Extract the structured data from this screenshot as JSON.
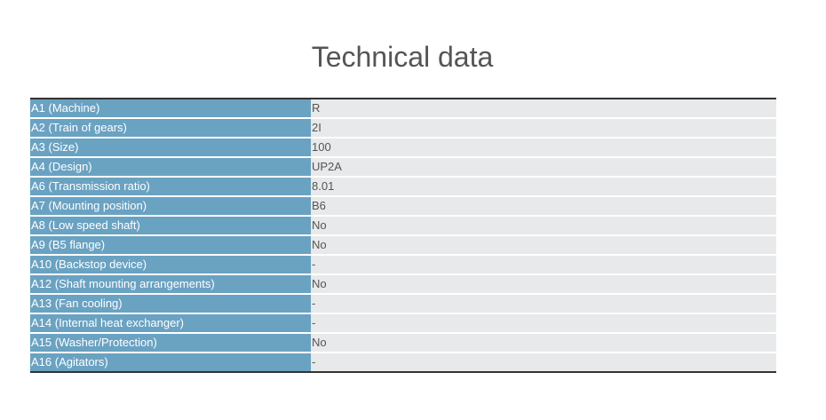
{
  "header": {
    "title": "Technical data"
  },
  "table": {
    "rows": [
      [
        "A1 (Machine)",
        "R"
      ],
      [
        "A2 (Train of gears)",
        "2I"
      ],
      [
        "A3 (Size)",
        "100"
      ],
      [
        "A4 (Design)",
        "UP2A"
      ],
      [
        "A6 (Transmission ratio)",
        "8.01"
      ],
      [
        "A7 (Mounting position)",
        "B6"
      ],
      [
        "A8 (Low speed shaft)",
        "No"
      ],
      [
        "A9 (B5 flange)",
        "No"
      ],
      [
        "A10 (Backstop device)",
        "-"
      ],
      [
        "A12 (Shaft mounting arrangements)",
        "No"
      ],
      [
        "A13 (Fan cooling)",
        "-"
      ],
      [
        "A14 (Internal heat exchanger)",
        "-"
      ],
      [
        "A15 (Washer/Protection)",
        "No"
      ],
      [
        "A16 (Agitators)",
        "-"
      ]
    ]
  }
}
